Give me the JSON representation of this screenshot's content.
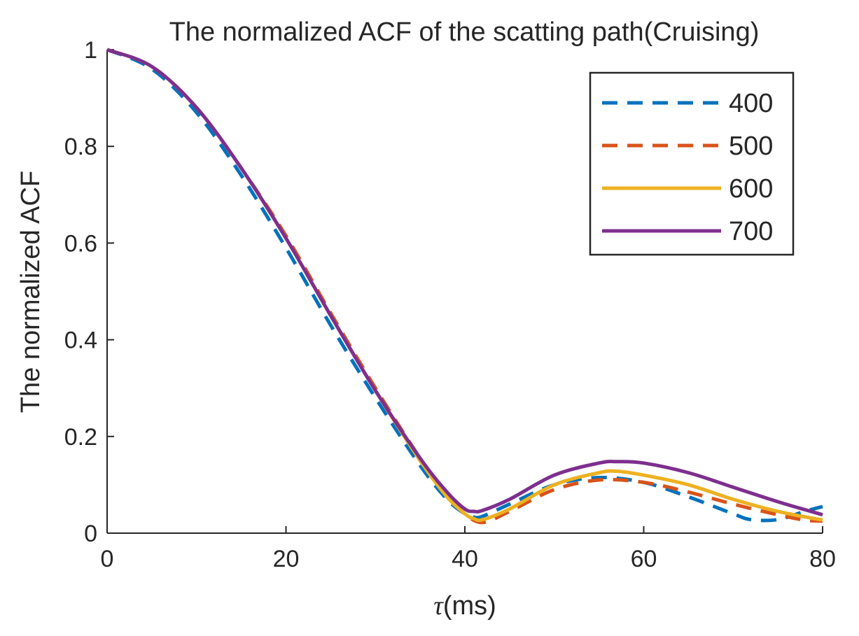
{
  "chart_data": {
    "type": "line",
    "title": "The normalized ACF of the scatting path(Cruising)",
    "xlabel_symbol": "τ",
    "xlabel_unit": "(ms)",
    "ylabel": "The normalized ACF",
    "xlim": [
      0,
      80
    ],
    "ylim": [
      0,
      1
    ],
    "xticks": [
      0,
      20,
      40,
      60,
      80
    ],
    "yticks": [
      0,
      0.2,
      0.4,
      0.6,
      0.8,
      1
    ],
    "ytick_labels": [
      "0",
      "0.2",
      "0.4",
      "0.6",
      "0.8",
      "1"
    ],
    "grid": false,
    "legend_position": "top-right",
    "series": [
      {
        "name": "400",
        "color": "#0072BD",
        "style": "dashed",
        "x": [
          0,
          5,
          10,
          15,
          20,
          25,
          30,
          35,
          38,
          40,
          41,
          42,
          45,
          50,
          55,
          60,
          65,
          70,
          72,
          75,
          78,
          80
        ],
        "y": [
          1.0,
          0.96,
          0.87,
          0.74,
          0.59,
          0.43,
          0.28,
          0.14,
          0.07,
          0.04,
          0.033,
          0.035,
          0.06,
          0.1,
          0.115,
          0.105,
          0.075,
          0.04,
          0.028,
          0.028,
          0.045,
          0.055
        ]
      },
      {
        "name": "500",
        "color": "#D95319",
        "style": "dashed",
        "x": [
          0,
          5,
          10,
          15,
          20,
          25,
          30,
          35,
          38,
          40,
          42,
          45,
          50,
          55,
          60,
          65,
          70,
          75,
          78,
          80
        ],
        "y": [
          1.0,
          0.965,
          0.88,
          0.755,
          0.615,
          0.455,
          0.3,
          0.155,
          0.08,
          0.04,
          0.022,
          0.045,
          0.09,
          0.11,
          0.105,
          0.085,
          0.06,
          0.038,
          0.027,
          0.025
        ]
      },
      {
        "name": "600",
        "color": "#EDB120",
        "style": "solid",
        "x": [
          0,
          5,
          10,
          15,
          20,
          25,
          30,
          35,
          38,
          40,
          41,
          42,
          45,
          50,
          55,
          57,
          60,
          65,
          70,
          75,
          80
        ],
        "y": [
          1.0,
          0.965,
          0.88,
          0.755,
          0.61,
          0.45,
          0.295,
          0.15,
          0.075,
          0.04,
          0.03,
          0.028,
          0.05,
          0.1,
          0.125,
          0.128,
          0.12,
          0.1,
          0.07,
          0.045,
          0.027
        ]
      },
      {
        "name": "700",
        "color": "#7E2F8E",
        "style": "solid",
        "x": [
          0,
          5,
          10,
          15,
          20,
          25,
          30,
          35,
          38,
          40,
          41,
          42,
          45,
          50,
          55,
          57,
          60,
          65,
          70,
          75,
          80
        ],
        "y": [
          1.0,
          0.965,
          0.88,
          0.755,
          0.61,
          0.45,
          0.295,
          0.155,
          0.085,
          0.05,
          0.045,
          0.047,
          0.07,
          0.12,
          0.145,
          0.148,
          0.145,
          0.125,
          0.095,
          0.065,
          0.038
        ]
      }
    ]
  }
}
